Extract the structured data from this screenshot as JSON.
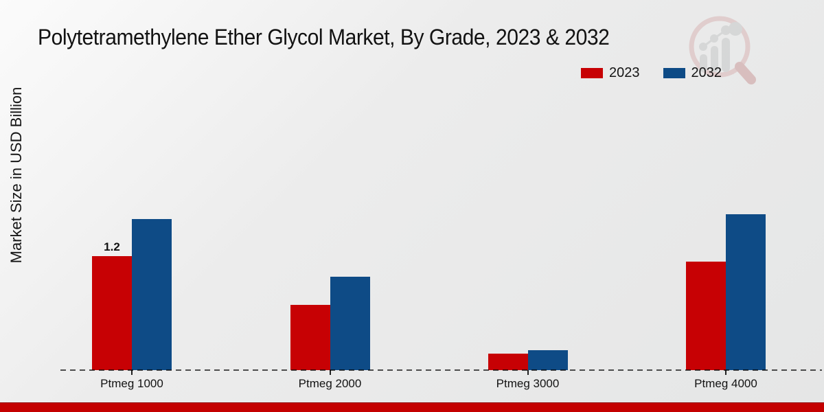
{
  "header": {
    "title": "Polytetramethylene Ether Glycol Market, By Grade, 2023 & 2032"
  },
  "y_axis_label": "Market Size in USD Billion",
  "legend": [
    {
      "label": "2023",
      "color": "#c70104"
    },
    {
      "label": "2032",
      "color": "#0e4b86"
    }
  ],
  "footer": {
    "color": "#c40000"
  },
  "icons": {
    "watermark": "magnifier-bar-chart-logo"
  },
  "chart_data": {
    "type": "bar",
    "title": "Polytetramethylene Ether Glycol Market, By Grade, 2023 & 2032",
    "categories": [
      "Ptmeg 1000",
      "Ptmeg 2000",
      "Ptmeg 3000",
      "Ptmeg 4000"
    ],
    "series": [
      {
        "name": "2023",
        "color": "#c70104",
        "values": [
          1.2,
          0.69,
          0.17,
          1.14
        ],
        "data_labels": [
          "1.2",
          "",
          "",
          ""
        ]
      },
      {
        "name": "2032",
        "color": "#0e4b86",
        "values": [
          1.59,
          0.98,
          0.21,
          1.64
        ],
        "data_labels": [
          "",
          "",
          "",
          ""
        ]
      }
    ],
    "xlabel": "",
    "ylabel": "Market Size in USD Billion",
    "ylim": [
      0,
      2.2
    ],
    "grid": false,
    "legend_position": "top-right",
    "x_axis_style": "dashed-baseline",
    "y_axis_ticks": "none"
  }
}
